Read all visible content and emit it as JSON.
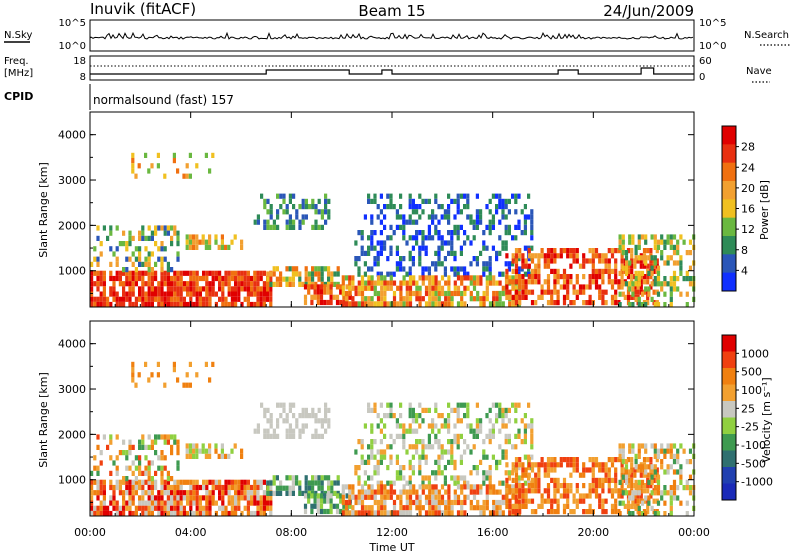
{
  "header": {
    "station": "Inuvik (fitACF)",
    "beam": "Beam 15",
    "date": "24/Jun/2009"
  },
  "summary_panels": {
    "nsky_label": "N.Sky",
    "nsky_ticks": [
      "10^5",
      "10^0"
    ],
    "nsearch_label": "N.Search",
    "nsearch_ticks": [
      "10^5",
      "10^0"
    ],
    "freq_label_line1": "Freq.",
    "freq_label_line2": "[MHz]",
    "freq_ticks": [
      "18",
      "8"
    ],
    "nave_label": "Nave",
    "nave_ticks": [
      "60",
      "0"
    ],
    "cpid_label": "CPID",
    "cpid_value": "normalsound (fast) 157"
  },
  "colors": {
    "power": [
      "#1030ff",
      "#2a56b8",
      "#2e8b57",
      "#6ab840",
      "#f0c020",
      "#f2a030",
      "#f07010",
      "#e83010",
      "#e00000"
    ],
    "velocity": [
      "#e00000",
      "#f04010",
      "#f08010",
      "#f2a030",
      "#c8c8c0",
      "#90d040",
      "#3e9a50",
      "#2f7070",
      "#2040b0",
      "#1a2ab8"
    ]
  },
  "chart_data": [
    {
      "type": "heatmap",
      "name": "power-panel",
      "ylabel": "Slant Range [km]",
      "xlabel": "",
      "x_ticks": [
        "00:00",
        "04:00",
        "08:00",
        "12:00",
        "16:00",
        "20:00",
        "00:00"
      ],
      "x_hours": [
        0,
        4,
        8,
        12,
        16,
        20,
        24
      ],
      "y_ticks": [
        "1000",
        "2000",
        "3000",
        "4000"
      ],
      "y_values": [
        1000,
        2000,
        3000,
        4000
      ],
      "ylim": [
        200,
        4500
      ],
      "xlim": [
        0,
        24
      ],
      "colorbar_label": "Power [dB]",
      "colorbar_ticks": [
        "28",
        "24",
        "20",
        "16",
        "12",
        "8",
        "4"
      ]
    },
    {
      "type": "heatmap",
      "name": "velocity-panel",
      "ylabel": "Slant Range [km]",
      "xlabel": "Time UT",
      "x_ticks": [
        "00:00",
        "04:00",
        "08:00",
        "12:00",
        "16:00",
        "20:00",
        "00:00"
      ],
      "x_hours": [
        0,
        4,
        8,
        12,
        16,
        20,
        24
      ],
      "y_ticks": [
        "1000",
        "2000",
        "3000",
        "4000"
      ],
      "y_values": [
        1000,
        2000,
        3000,
        4000
      ],
      "ylim": [
        200,
        4500
      ],
      "xlim": [
        0,
        24
      ],
      "colorbar_label": "Velocity [m s⁻¹]",
      "colorbar_ticks": [
        "1000",
        "500",
        "100",
        "25",
        "-25",
        "-100",
        "-500",
        "-1000"
      ]
    }
  ]
}
